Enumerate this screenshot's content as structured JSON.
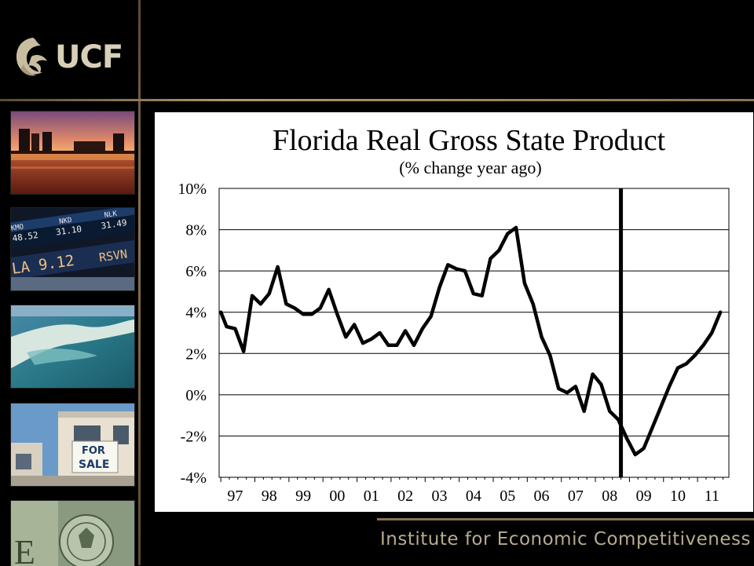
{
  "header": {
    "logo_text": "UCF"
  },
  "sidebar": {
    "tiles": [
      "city-skyline-photo",
      "stock-ticker-photo",
      "coastal-water-photo",
      "for-sale-house-photo",
      "dollar-bill-photo"
    ],
    "ticker_text": [
      "KMO",
      "NKD",
      "NLK",
      "48.52",
      "31.10",
      "31.49",
      "LA 9.12",
      "RSVN"
    ],
    "sale_sign": [
      "FOR",
      "SALE"
    ]
  },
  "footer": {
    "text": "Institute for Economic Competitiveness"
  },
  "chart_data": {
    "type": "line",
    "title": "Florida Real Gross State Product",
    "subtitle": "(% change year ago)",
    "xlabel": "",
    "ylabel": "",
    "ylim": [
      -4,
      10
    ],
    "y_ticks": [
      "10%",
      "8%",
      "6%",
      "4%",
      "2%",
      "0%",
      "-2%",
      "-4%"
    ],
    "y_tick_values": [
      10,
      8,
      6,
      4,
      2,
      0,
      -2,
      -4
    ],
    "x_tick_labels": [
      "97",
      "98",
      "99",
      "00",
      "01",
      "02",
      "03",
      "04",
      "05",
      "06",
      "07",
      "08",
      "09",
      "10",
      "11"
    ],
    "x_tick_years": [
      1997,
      1998,
      1999,
      2000,
      2001,
      2002,
      2003,
      2004,
      2005,
      2006,
      2007,
      2008,
      2009,
      2010,
      2011
    ],
    "grid": true,
    "vertical_marker_year": 2008.75,
    "series": [
      {
        "line_color": "#000000",
        "points": [
          [
            1997.0,
            4.0
          ],
          [
            1997.17,
            3.3
          ],
          [
            1997.42,
            3.2
          ],
          [
            1997.67,
            2.1
          ],
          [
            1997.92,
            4.8
          ],
          [
            1998.17,
            4.4
          ],
          [
            1998.42,
            4.9
          ],
          [
            1998.67,
            6.2
          ],
          [
            1998.92,
            4.4
          ],
          [
            1999.17,
            4.2
          ],
          [
            1999.42,
            3.9
          ],
          [
            1999.67,
            3.9
          ],
          [
            1999.92,
            4.2
          ],
          [
            2000.17,
            5.1
          ],
          [
            2000.42,
            3.9
          ],
          [
            2000.67,
            2.8
          ],
          [
            2000.92,
            3.4
          ],
          [
            2001.17,
            2.5
          ],
          [
            2001.42,
            2.7
          ],
          [
            2001.67,
            3.0
          ],
          [
            2001.92,
            2.4
          ],
          [
            2002.17,
            2.4
          ],
          [
            2002.42,
            3.1
          ],
          [
            2002.67,
            2.4
          ],
          [
            2002.92,
            3.2
          ],
          [
            2003.17,
            3.8
          ],
          [
            2003.42,
            5.2
          ],
          [
            2003.67,
            6.3
          ],
          [
            2003.92,
            6.1
          ],
          [
            2004.17,
            6.0
          ],
          [
            2004.42,
            4.9
          ],
          [
            2004.67,
            4.8
          ],
          [
            2004.92,
            6.6
          ],
          [
            2005.17,
            7.0
          ],
          [
            2005.42,
            7.8
          ],
          [
            2005.67,
            8.1
          ],
          [
            2005.92,
            5.4
          ],
          [
            2006.17,
            4.4
          ],
          [
            2006.42,
            2.8
          ],
          [
            2006.67,
            1.9
          ],
          [
            2006.92,
            0.3
          ],
          [
            2007.17,
            0.1
          ],
          [
            2007.42,
            0.4
          ],
          [
            2007.67,
            -0.8
          ],
          [
            2007.92,
            1.0
          ],
          [
            2008.17,
            0.5
          ],
          [
            2008.42,
            -0.8
          ],
          [
            2008.67,
            -1.2
          ],
          [
            2008.92,
            -2.1
          ],
          [
            2009.17,
            -2.9
          ],
          [
            2009.42,
            -2.6
          ],
          [
            2009.67,
            -1.6
          ],
          [
            2009.92,
            -0.6
          ],
          [
            2010.17,
            0.4
          ],
          [
            2010.42,
            1.3
          ],
          [
            2010.67,
            1.5
          ],
          [
            2010.92,
            1.9
          ],
          [
            2011.17,
            2.4
          ],
          [
            2011.42,
            3.0
          ],
          [
            2011.67,
            4.0
          ]
        ]
      }
    ]
  }
}
